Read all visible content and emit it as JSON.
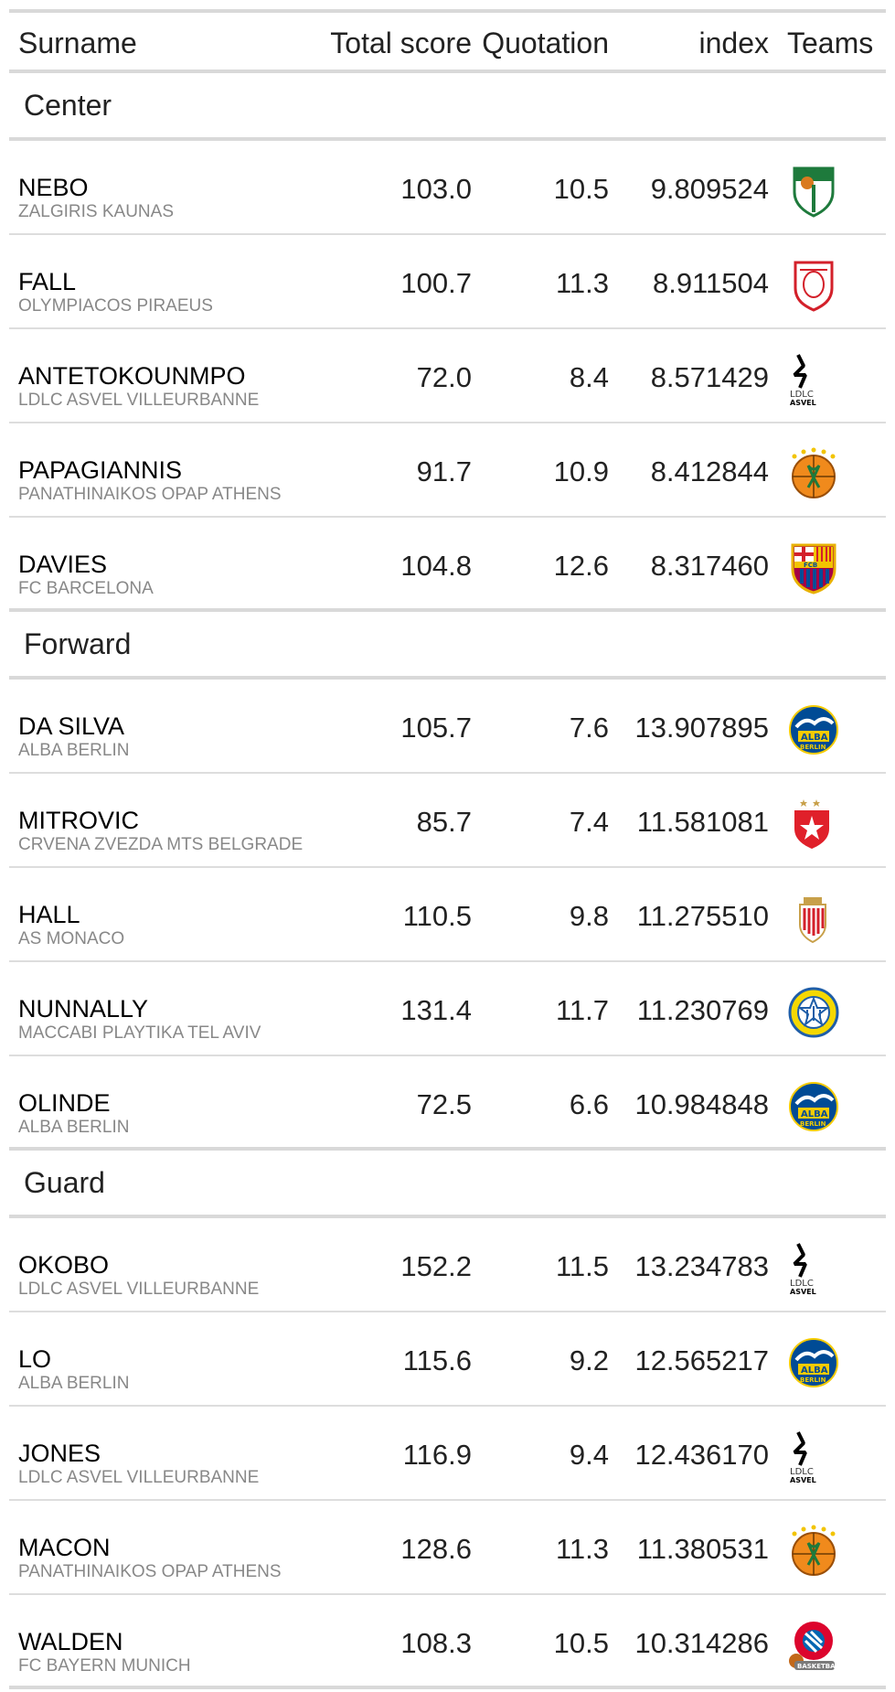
{
  "columns": {
    "name": "Surname",
    "score": "Total score",
    "quotation": "Quotation",
    "index": "index",
    "teams": "Teams"
  },
  "groups": [
    {
      "label": "Center",
      "rows": [
        {
          "name": "NEBO",
          "team": "ZALGIRIS KAUNAS",
          "score": "103.0",
          "quotation": "10.5",
          "index": "9.809524",
          "logo": "zalgiris-logo"
        },
        {
          "name": "FALL",
          "team": "OLYMPIACOS PIRAEUS",
          "score": "100.7",
          "quotation": "11.3",
          "index": "8.911504",
          "logo": "olympiacos-logo"
        },
        {
          "name": "ANTETOKOUNMPO",
          "team": "LDLC ASVEL VILLEURBANNE",
          "score": "72.0",
          "quotation": "8.4",
          "index": "8.571429",
          "logo": "asvel-logo"
        },
        {
          "name": "PAPAGIANNIS",
          "team": "PANATHINAIKOS OPAP ATHENS",
          "score": "91.7",
          "quotation": "10.9",
          "index": "8.412844",
          "logo": "panathinaikos-logo"
        },
        {
          "name": "DAVIES",
          "team": "FC BARCELONA",
          "score": "104.8",
          "quotation": "12.6",
          "index": "8.317460",
          "logo": "barcelona-logo"
        }
      ]
    },
    {
      "label": "Forward",
      "rows": [
        {
          "name": "DA SILVA",
          "team": "ALBA BERLIN",
          "score": "105.7",
          "quotation": "7.6",
          "index": "13.907895",
          "logo": "alba-logo"
        },
        {
          "name": "MITROVIC",
          "team": "CRVENA ZVEZDA MTS BELGRADE",
          "score": "85.7",
          "quotation": "7.4",
          "index": "11.581081",
          "logo": "crvena-zvezda-logo"
        },
        {
          "name": "HALL",
          "team": "AS MONACO",
          "score": "110.5",
          "quotation": "9.8",
          "index": "11.275510",
          "logo": "monaco-logo"
        },
        {
          "name": "NUNNALLY",
          "team": "MACCABI PLAYTIKA TEL AVIV",
          "score": "131.4",
          "quotation": "11.7",
          "index": "11.230769",
          "logo": "maccabi-logo"
        },
        {
          "name": "OLINDE",
          "team": "ALBA BERLIN",
          "score": "72.5",
          "quotation": "6.6",
          "index": "10.984848",
          "logo": "alba-logo"
        }
      ]
    },
    {
      "label": "Guard",
      "rows": [
        {
          "name": "OKOBO",
          "team": "LDLC ASVEL VILLEURBANNE",
          "score": "152.2",
          "quotation": "11.5",
          "index": "13.234783",
          "logo": "asvel-logo"
        },
        {
          "name": "LO",
          "team": "ALBA BERLIN",
          "score": "115.6",
          "quotation": "9.2",
          "index": "12.565217",
          "logo": "alba-logo"
        },
        {
          "name": "JONES",
          "team": "LDLC ASVEL VILLEURBANNE",
          "score": "116.9",
          "quotation": "9.4",
          "index": "12.436170",
          "logo": "asvel-logo"
        },
        {
          "name": "MACON",
          "team": "PANATHINAIKOS OPAP ATHENS",
          "score": "128.6",
          "quotation": "11.3",
          "index": "11.380531",
          "logo": "panathinaikos-logo"
        },
        {
          "name": "WALDEN",
          "team": "FC BAYERN MUNICH",
          "score": "108.3",
          "quotation": "10.5",
          "index": "10.314286",
          "logo": "bayern-logo"
        }
      ]
    }
  ],
  "logo_text": {
    "asvel": "LDLC",
    "asvel_sub": "ASVEL",
    "alba": "ALBA",
    "alba_sub": "BERLIN",
    "barcelona": "FCB",
    "bayern": "BASKETBALL"
  },
  "colors": {
    "header_rule": "#d9d9d9",
    "row_rule": "#dddddd",
    "team_text": "#888888"
  }
}
